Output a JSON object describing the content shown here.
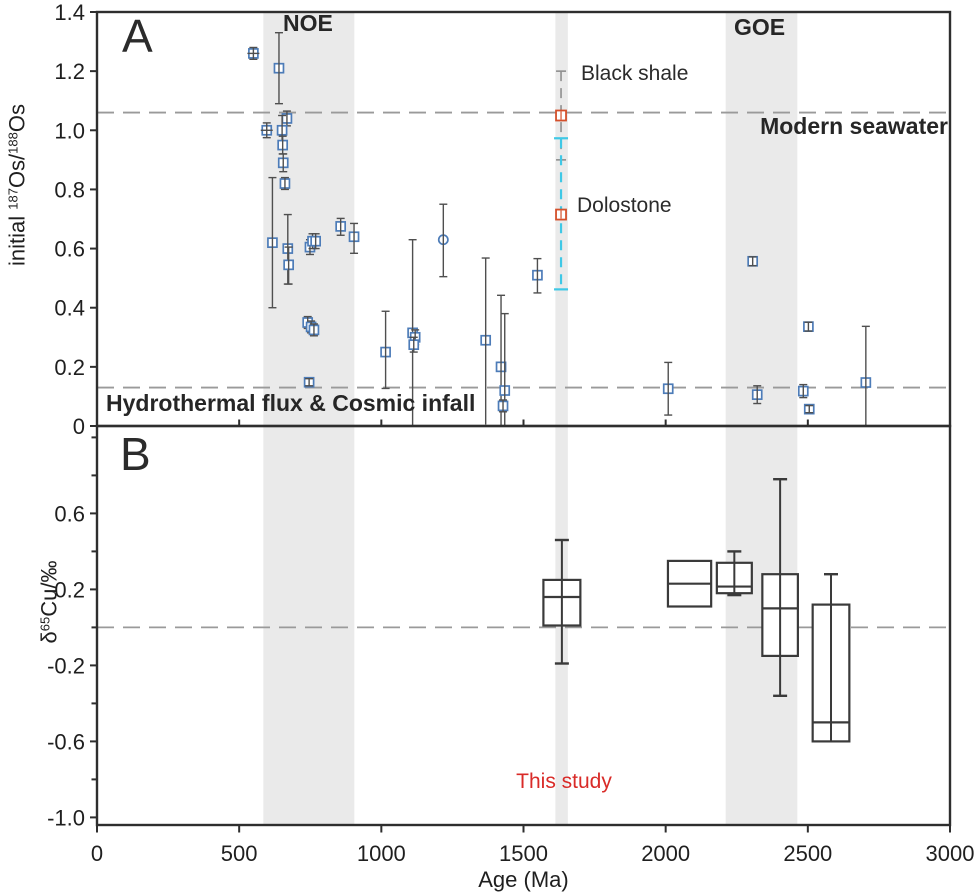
{
  "colors": {
    "band": "#eaeaea",
    "frame": "#2e2e2e",
    "error_bar": "#4f4f4f",
    "marker_blue": "#4d7cb8",
    "marker_red": "#d4502b",
    "cyan_bar": "#3fc8e6",
    "gray_bar": "#8f8f8f",
    "dashed_line": "#9a9a9a",
    "box_stroke": "#3a3a3a",
    "annotation_red": "#d92b28"
  },
  "chart_data": [
    {
      "type": "scatter",
      "panel_label": "A",
      "xlim": [
        0,
        3000
      ],
      "ylim": [
        0,
        1.4
      ],
      "ylabel_parts": [
        {
          "t": "initial "
        },
        {
          "t": "187",
          "sup": true
        },
        {
          "t": "Os/"
        },
        {
          "t": "188",
          "sup": true
        },
        {
          "t": "Os"
        }
      ],
      "yticks": [
        {
          "v": 1.4,
          "label": "1.4"
        },
        {
          "v": 1.2,
          "label": "1.2"
        },
        {
          "v": 1.0,
          "label": "1.0"
        },
        {
          "v": 0.8,
          "label": "0.8"
        },
        {
          "v": 0.6,
          "label": "0.6"
        },
        {
          "v": 0.4,
          "label": "0.4"
        },
        {
          "v": 0.2,
          "label": "0.2"
        },
        {
          "v": 0.0,
          "label": "0"
        }
      ],
      "bands": [
        {
          "label": "NOE",
          "x0": 585,
          "x1": 905
        },
        {
          "label": "This study",
          "x0": 1612,
          "x1": 1656
        },
        {
          "label": "GOE",
          "x0": 2211,
          "x1": 2463
        }
      ],
      "ref_lines": [
        {
          "label": "Modern seawater",
          "y": 1.06
        },
        {
          "label": "Hydrothermal flux & Cosmic infall",
          "y": 0.13
        }
      ],
      "series": [
        {
          "id": "published-os-data",
          "symbol": "open-square",
          "color": "#4d7cb8",
          "points_format": [
            "age_Ma",
            "initial_187Os_188Os",
            "err_plus",
            "err_minus",
            "symbol"
          ],
          "points": [
            [
              550,
              1.26,
              0.02,
              0.02,
              "sqx"
            ],
            [
              597,
              1.0,
              0.025,
              0.025,
              "sqx"
            ],
            [
              640,
              1.21,
              0.12,
              0.12,
              "sq"
            ],
            [
              668,
              1.04,
              0.025,
              0.025,
              "sq"
            ],
            [
              651,
              1.0,
              0.05,
              0.04,
              "sq"
            ],
            [
              653,
              0.95,
              0.03,
              0.03,
              "sq"
            ],
            [
              655,
              0.89,
              0.03,
              0.03,
              "sq"
            ],
            [
              661,
              0.82,
              0.02,
              0.02,
              "sq"
            ],
            [
              617,
              0.62,
              0.22,
              0.22,
              "sq"
            ],
            [
              671,
              0.6,
              0.115,
              0.12,
              "sq"
            ],
            [
              674,
              0.545,
              0.06,
              0.065,
              "sq"
            ],
            [
              749,
              0.605,
              0.025,
              0.025,
              "sq"
            ],
            [
              758,
              0.625,
              0.025,
              0.025,
              "sq"
            ],
            [
              769,
              0.625,
              0.025,
              0.025,
              "sq"
            ],
            [
              741,
              0.35,
              0.02,
              0.02,
              "sq"
            ],
            [
              753,
              0.335,
              0.02,
              0.02,
              "sq"
            ],
            [
              763,
              0.325,
              0.02,
              0.02,
              "sq"
            ],
            [
              746,
              0.148,
              0.012,
              0.012,
              "sq"
            ],
            [
              857,
              0.675,
              0.027,
              0.03,
              "sq"
            ],
            [
              904,
              0.64,
              0.045,
              0.056,
              "sq"
            ],
            [
              1015,
              0.25,
              0.138,
              0.123,
              "sq"
            ],
            [
              1110,
              0.315,
              0.315,
              0.315,
              "sq"
            ],
            [
              1119,
              0.3,
              0.025,
              0.025,
              "sq"
            ],
            [
              1114,
              0.275,
              0.025,
              0.025,
              "sq"
            ],
            [
              1218,
              0.63,
              0.12,
              0.125,
              "circle"
            ],
            [
              1367,
              0.29,
              0.278,
              0.285,
              "sq"
            ],
            [
              1421,
              0.2,
              0.242,
              0.2,
              "sq"
            ],
            [
              1434,
              0.12,
              0.26,
              0.12,
              "sq"
            ],
            [
              1428,
              0.068,
              0.02,
              0.02,
              "sq"
            ],
            [
              1549,
              0.51,
              0.056,
              0.06,
              "sq"
            ],
            [
              2009,
              0.126,
              0.089,
              0.089,
              "sq"
            ],
            [
              2306,
              0.557,
              0.015,
              0.015,
              "sq"
            ],
            [
              2322,
              0.106,
              0.03,
              0.03,
              "sq"
            ],
            [
              2484,
              0.118,
              0.022,
              0.022,
              "sq"
            ],
            [
              2502,
              0.336,
              0.015,
              0.015,
              "sq"
            ],
            [
              2505,
              0.057,
              0.012,
              0.012,
              "sq"
            ],
            [
              2704,
              0.147,
              0.19,
              0.145,
              "sq"
            ]
          ]
        },
        {
          "id": "black-shale-this-study",
          "label": "Black shale",
          "symbol": "open-square",
          "color": "#d4502b",
          "x": 1632,
          "y": 1.05,
          "bar": {
            "top": 1.2,
            "bottom": 0.9,
            "style": "dashed",
            "color": "#8f8f8f"
          }
        },
        {
          "id": "dolostone-this-study",
          "label": "Dolostone",
          "symbol": "open-square",
          "color": "#d4502b",
          "x": 1632,
          "y": 0.715,
          "bar": {
            "top": 0.973,
            "bottom": 0.462,
            "style": "dashed",
            "color": "#3fc8e6"
          }
        }
      ]
    },
    {
      "type": "box",
      "panel_label": "B",
      "annotation": "This study",
      "xlabel": "Age (Ma)",
      "xlim": [
        0,
        3000
      ],
      "ylim": [
        -1.04,
        1.06
      ],
      "ylabel_parts": [
        {
          "t": "δ"
        },
        {
          "t": "65",
          "sup": true
        },
        {
          "t": "Cu/‰"
        }
      ],
      "yticks_labeled": [
        {
          "v": 0.6,
          "label": "0.6"
        },
        {
          "v": 0.2,
          "label": "0.2"
        },
        {
          "v": -0.2,
          "label": "-0.2"
        },
        {
          "v": -0.6,
          "label": "-0.6"
        },
        {
          "v": -1.0,
          "label": "-1.0"
        }
      ],
      "yticks_minor": [
        1.0,
        0.8,
        0.4,
        0.0,
        -0.4,
        -0.8
      ],
      "xticks": [
        {
          "v": 0,
          "label": "0"
        },
        {
          "v": 500,
          "label": "500"
        },
        {
          "v": 1000,
          "label": "1000"
        },
        {
          "v": 1500,
          "label": "1500"
        },
        {
          "v": 2000,
          "label": "2000"
        },
        {
          "v": 2500,
          "label": "2500"
        },
        {
          "v": 3000,
          "label": "3000"
        }
      ],
      "ref_lines": [
        {
          "label": "",
          "y": 0.0
        }
      ],
      "boxes_format": [
        "x0_Ma",
        "x1_Ma",
        "q1",
        "q3",
        "median",
        "whisker_low",
        "whisker_high"
      ],
      "boxes": [
        {
          "x0": 1570,
          "x1": 1700,
          "q1": 0.01,
          "q3": 0.25,
          "median": 0.16,
          "lo": -0.19,
          "hi": 0.46
        },
        {
          "x0": 2008,
          "x1": 2160,
          "q1": 0.11,
          "q3": 0.35,
          "median": 0.23,
          "lo": null,
          "hi": null
        },
        {
          "x0": 2180,
          "x1": 2303,
          "q1": 0.18,
          "q3": 0.34,
          "median": 0.215,
          "lo": 0.17,
          "hi": 0.4
        },
        {
          "x0": 2340,
          "x1": 2465,
          "q1": -0.15,
          "q3": 0.28,
          "median": 0.1,
          "lo": -0.36,
          "hi": 0.78
        },
        {
          "x0": 2517,
          "x1": 2646,
          "q1": -0.6,
          "q3": 0.12,
          "median": -0.5,
          "lo": null,
          "hi": 0.28
        }
      ]
    }
  ]
}
